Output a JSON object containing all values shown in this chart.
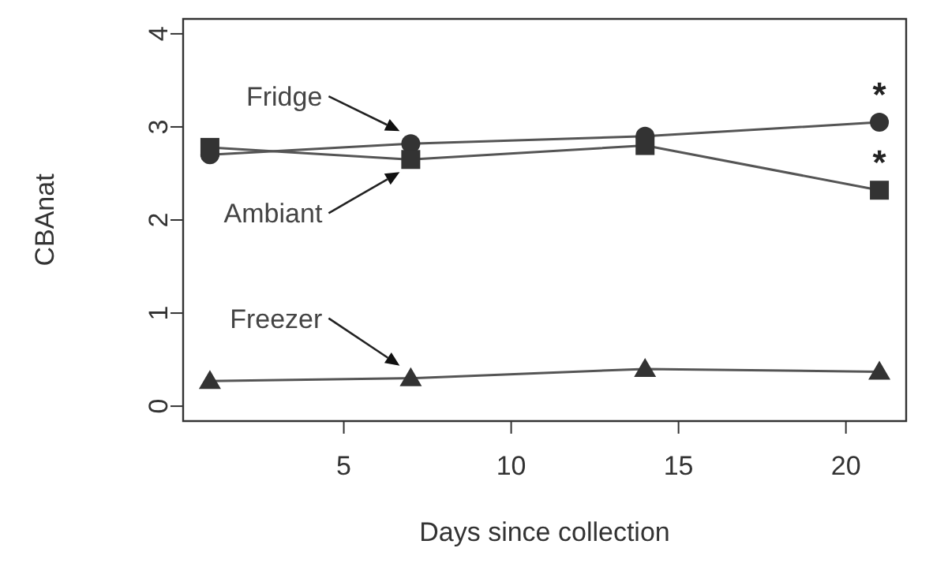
{
  "chart_data": {
    "type": "line",
    "xlabel": "Days since collection",
    "ylabel": "CBAnat",
    "x": [
      1,
      7,
      14,
      21
    ],
    "xlim": [
      0.2,
      21.8
    ],
    "xticks": [
      5,
      10,
      15,
      20
    ],
    "ylim": [
      -0.16,
      4.16
    ],
    "yticks": [
      0,
      1,
      2,
      3,
      4
    ],
    "grid": false,
    "series": [
      {
        "name": "Fridge",
        "color": "#555555",
        "marker": "circle",
        "values": [
          2.7,
          2.82,
          2.9,
          3.05
        ]
      },
      {
        "name": "Ambiant",
        "color": "#555555",
        "marker": "square",
        "values": [
          2.78,
          2.65,
          2.8,
          2.32
        ]
      },
      {
        "name": "Freezer",
        "color": "#555555",
        "marker": "triangle",
        "values": [
          0.27,
          0.3,
          0.4,
          0.37
        ]
      }
    ],
    "annotations": [
      {
        "text": "*",
        "x": 21,
        "y": 3.05
      },
      {
        "text": "*",
        "x": 21,
        "y": 2.32
      }
    ]
  }
}
